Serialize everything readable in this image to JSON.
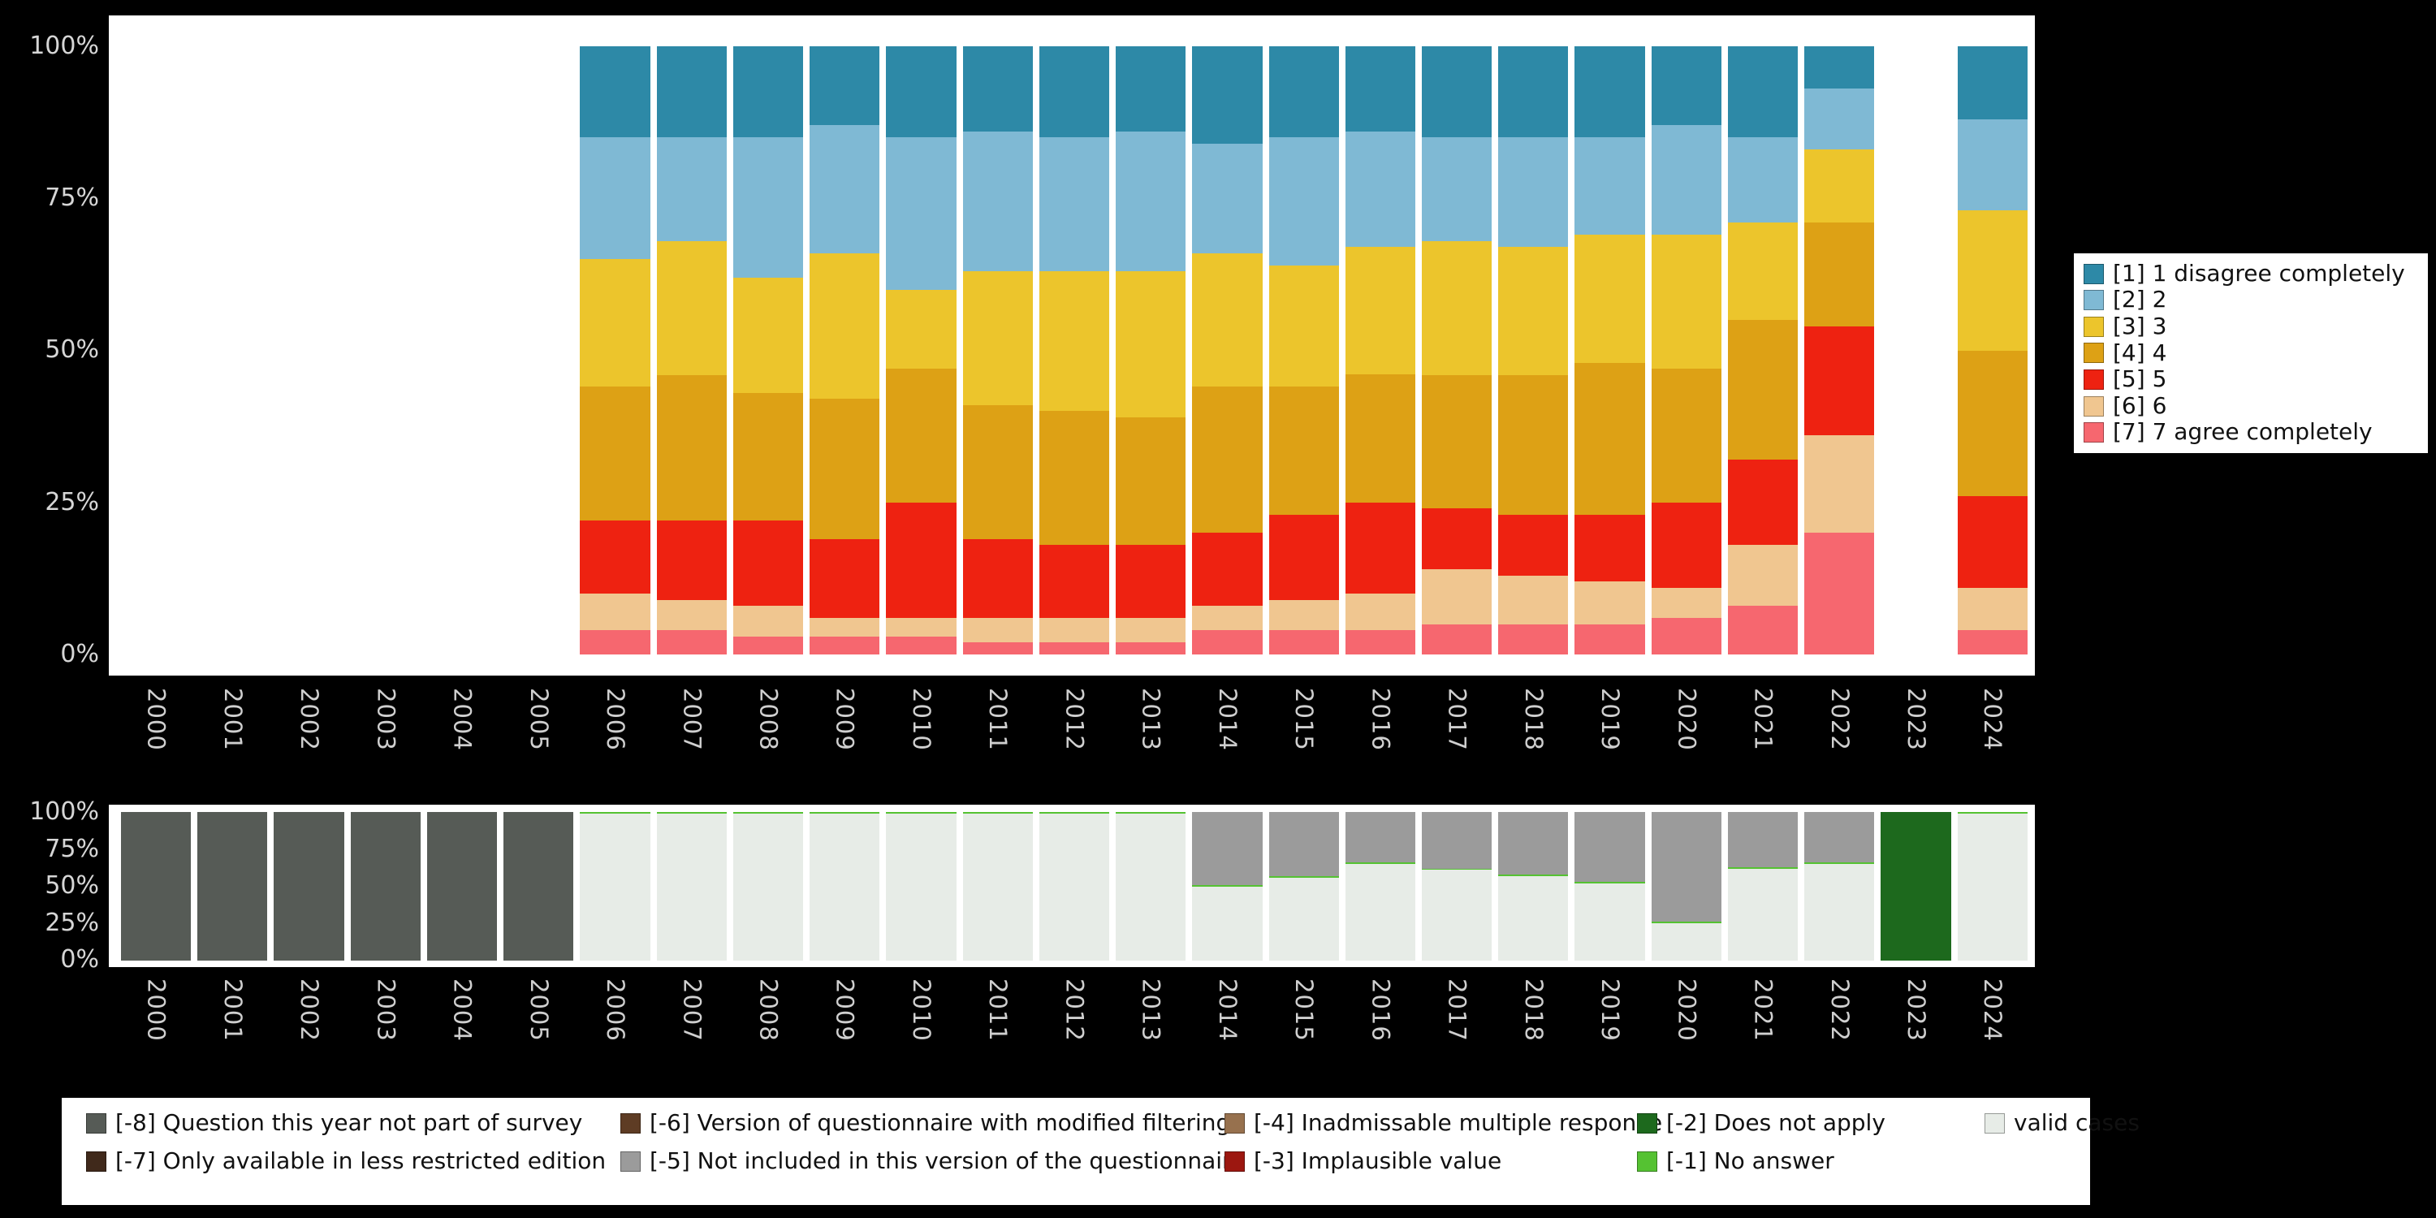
{
  "chart_data": [
    {
      "id": "rating-distribution",
      "type": "bar",
      "stacked": true,
      "unit": "percent",
      "ylim": [
        0,
        100
      ],
      "ytick_labels": [
        "0%",
        "25%",
        "50%",
        "75%",
        "100%"
      ],
      "ytick_values": [
        0,
        25,
        50,
        75,
        100
      ],
      "grid": false,
      "legend_position": "right",
      "categories": [
        "2000",
        "2001",
        "2002",
        "2003",
        "2004",
        "2005",
        "2006",
        "2007",
        "2008",
        "2009",
        "2010",
        "2011",
        "2012",
        "2013",
        "2014",
        "2015",
        "2016",
        "2017",
        "2018",
        "2019",
        "2020",
        "2021",
        "2022",
        "2023",
        "2024"
      ],
      "series": [
        {
          "name": "[1] 1 disagree completely",
          "color": "#2d89a7",
          "values": [
            0,
            0,
            0,
            0,
            0,
            0,
            15,
            15,
            15,
            13,
            15,
            14,
            15,
            14,
            16,
            15,
            14,
            15,
            15,
            15,
            13,
            15,
            7,
            0,
            12
          ]
        },
        {
          "name": "[2] 2",
          "color": "#7fb9d4",
          "values": [
            0,
            0,
            0,
            0,
            0,
            0,
            20,
            17,
            23,
            21,
            25,
            23,
            22,
            23,
            18,
            21,
            19,
            17,
            18,
            16,
            18,
            14,
            10,
            0,
            15
          ]
        },
        {
          "name": "[3] 3",
          "color": "#ecc52c",
          "values": [
            0,
            0,
            0,
            0,
            0,
            0,
            21,
            22,
            19,
            24,
            13,
            22,
            23,
            24,
            22,
            20,
            21,
            22,
            21,
            21,
            22,
            16,
            12,
            0,
            23
          ]
        },
        {
          "name": "[4] 4",
          "color": "#dda115",
          "values": [
            0,
            0,
            0,
            0,
            0,
            0,
            22,
            24,
            21,
            23,
            22,
            22,
            22,
            21,
            24,
            21,
            21,
            22,
            23,
            25,
            22,
            23,
            17,
            0,
            24
          ]
        },
        {
          "name": "[5] 5",
          "color": "#ee2211",
          "values": [
            0,
            0,
            0,
            0,
            0,
            0,
            12,
            13,
            14,
            13,
            19,
            13,
            12,
            12,
            12,
            14,
            15,
            10,
            10,
            11,
            14,
            14,
            18,
            0,
            15
          ]
        },
        {
          "name": "[6] 6",
          "color": "#f0c690",
          "values": [
            0,
            0,
            0,
            0,
            0,
            0,
            6,
            5,
            5,
            3,
            3,
            4,
            4,
            4,
            4,
            5,
            6,
            9,
            8,
            7,
            5,
            10,
            16,
            0,
            7
          ]
        },
        {
          "name": "[7] 7 agree completely",
          "color": "#f6676f",
          "values": [
            0,
            0,
            0,
            0,
            0,
            0,
            4,
            4,
            3,
            3,
            3,
            2,
            2,
            2,
            4,
            4,
            4,
            5,
            5,
            5,
            6,
            8,
            20,
            0,
            4
          ]
        }
      ]
    },
    {
      "id": "missing-values",
      "type": "bar",
      "stacked": true,
      "unit": "percent",
      "ylim": [
        0,
        100
      ],
      "ytick_labels": [
        "0%",
        "25%",
        "50%",
        "75%",
        "100%"
      ],
      "ytick_values": [
        0,
        25,
        50,
        75,
        100
      ],
      "grid": false,
      "legend_position": "bottom",
      "categories": [
        "2000",
        "2001",
        "2002",
        "2003",
        "2004",
        "2005",
        "2006",
        "2007",
        "2008",
        "2009",
        "2010",
        "2011",
        "2012",
        "2013",
        "2014",
        "2015",
        "2016",
        "2017",
        "2018",
        "2019",
        "2020",
        "2021",
        "2022",
        "2023",
        "2024"
      ],
      "series": [
        {
          "name": "valid cases",
          "color": "#e7ece7",
          "values": [
            0,
            0,
            0,
            0,
            0,
            0,
            99,
            99,
            99,
            99,
            99,
            99,
            99,
            99,
            50,
            56,
            65,
            61,
            57,
            52,
            25,
            62,
            65,
            0,
            99
          ]
        },
        {
          "name": "[-1] No answer",
          "color": "#55c232",
          "values": [
            0,
            0,
            0,
            0,
            0,
            0,
            1,
            1,
            1,
            1,
            1,
            1,
            1,
            1,
            1,
            1,
            1,
            1,
            1,
            1,
            1,
            1,
            1,
            0,
            1
          ]
        },
        {
          "name": "[-5] Not included in this version of the questionnaire",
          "color": "#9b9b9b",
          "values": [
            0,
            0,
            0,
            0,
            0,
            0,
            0,
            0,
            0,
            0,
            0,
            0,
            0,
            0,
            49,
            43,
            34,
            38,
            42,
            47,
            74,
            37,
            34,
            0,
            0
          ]
        },
        {
          "name": "[-8] Question this year not part of survey",
          "color": "#565b56",
          "values": [
            100,
            100,
            100,
            100,
            100,
            100,
            0,
            0,
            0,
            0,
            0,
            0,
            0,
            0,
            0,
            0,
            0,
            0,
            0,
            0,
            0,
            0,
            0,
            0,
            0
          ]
        },
        {
          "name": "[-2] Does not apply",
          "color": "#1d691d",
          "values": [
            0,
            0,
            0,
            0,
            0,
            0,
            0,
            0,
            0,
            0,
            0,
            0,
            0,
            0,
            0,
            0,
            0,
            0,
            0,
            0,
            0,
            0,
            0,
            100,
            0
          ]
        }
      ]
    }
  ],
  "missing_legend": {
    "columns": [
      [
        {
          "label": "[-8] Question this year not part of survey",
          "color": "#565b56"
        },
        {
          "label": "[-7] Only available in less restricted edition",
          "color": "#40291b"
        }
      ],
      [
        {
          "label": "[-6] Version of questionnaire with modified filtering",
          "color": "#5e3c24"
        },
        {
          "label": "[-5] Not included in this version of the questionnaire",
          "color": "#9b9b9b"
        }
      ],
      [
        {
          "label": "[-4] Inadmissable multiple response",
          "color": "#97714e"
        },
        {
          "label": "[-3] Implausible value",
          "color": "#9c1710"
        }
      ],
      [
        {
          "label": "[-2] Does not apply",
          "color": "#1d691d"
        },
        {
          "label": "[-1] No answer",
          "color": "#55c232"
        }
      ],
      [
        {
          "label": "valid cases",
          "color": "#e7ece7"
        }
      ]
    ]
  }
}
